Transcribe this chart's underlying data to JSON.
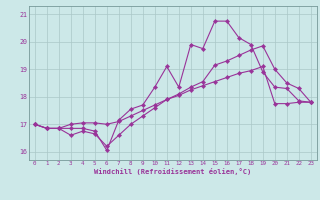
{
  "xlabel": "Windchill (Refroidissement éolien,°C)",
  "background_color": "#cce8e8",
  "grid_color": "#aac8c8",
  "line_color": "#993399",
  "xlim": [
    -0.5,
    23.5
  ],
  "ylim": [
    15.7,
    21.3
  ],
  "yticks": [
    16,
    17,
    18,
    19,
    20,
    21
  ],
  "xticks": [
    0,
    1,
    2,
    3,
    4,
    5,
    6,
    7,
    8,
    9,
    10,
    11,
    12,
    13,
    14,
    15,
    16,
    17,
    18,
    19,
    20,
    21,
    22,
    23
  ],
  "series": [
    [
      17.0,
      16.85,
      16.85,
      16.85,
      16.85,
      16.75,
      16.05,
      17.15,
      17.55,
      17.7,
      18.35,
      19.1,
      18.35,
      19.9,
      19.75,
      20.75,
      20.75,
      20.15,
      19.9,
      18.9,
      18.35,
      18.3,
      17.85,
      17.8
    ],
    [
      17.0,
      16.85,
      16.85,
      16.6,
      16.75,
      16.65,
      16.2,
      16.6,
      17.0,
      17.3,
      17.6,
      17.9,
      18.1,
      18.35,
      18.55,
      19.15,
      19.3,
      19.5,
      19.7,
      19.85,
      19.0,
      18.5,
      18.3,
      17.8
    ],
    [
      17.0,
      16.85,
      16.85,
      17.0,
      17.05,
      17.05,
      17.0,
      17.1,
      17.3,
      17.5,
      17.7,
      17.9,
      18.05,
      18.25,
      18.4,
      18.55,
      18.7,
      18.85,
      18.95,
      19.1,
      17.75,
      17.75,
      17.8,
      17.8
    ]
  ],
  "figsize": [
    3.2,
    2.0
  ],
  "dpi": 100
}
